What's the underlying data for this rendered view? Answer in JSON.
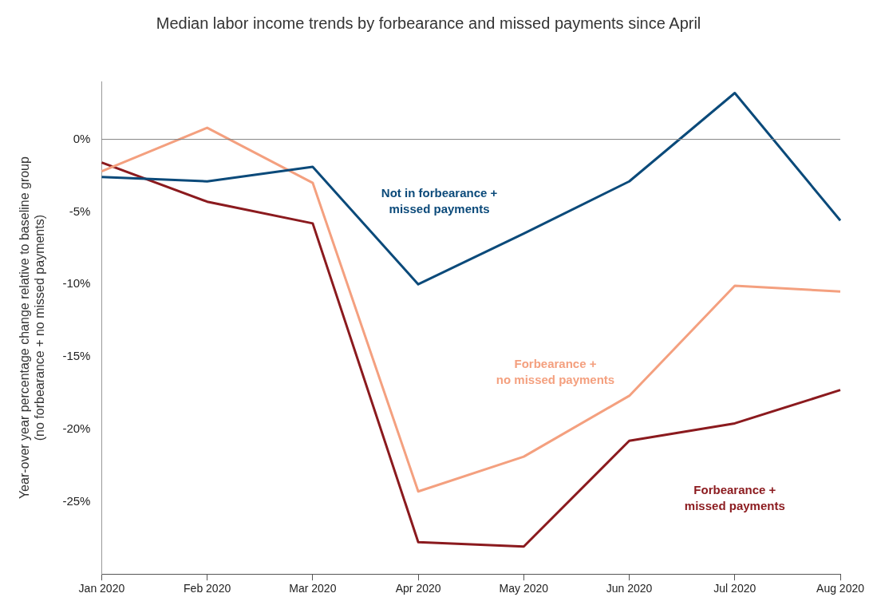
{
  "chart_data": {
    "type": "line",
    "title": "Median labor income trends by forbearance and missed payments since April",
    "ylabel": "Year-over year percentage change relative to baseline group\n(no forbearance + no missed payments)",
    "categories": [
      "Jan 2020",
      "Feb 2020",
      "Mar 2020",
      "Apr 2020",
      "May 2020",
      "Jun 2020",
      "Jul 2020",
      "Aug 2020"
    ],
    "series": [
      {
        "name": "Not in forbearance +\nmissed payments",
        "color": "#0b4a7a",
        "values": [
          -2.6,
          -2.9,
          -1.9,
          -10.0,
          -6.5,
          -2.9,
          3.2,
          -5.6
        ]
      },
      {
        "name": "Forbearance +\nno missed payments",
        "color": "#f4a07f",
        "values": [
          -2.2,
          0.8,
          -3.0,
          -24.3,
          -21.9,
          -17.7,
          -10.1,
          -10.5
        ]
      },
      {
        "name": "Forbearance +\nmissed payments",
        "color": "#8b1a1e",
        "values": [
          -1.6,
          -4.3,
          -5.8,
          -27.8,
          -28.1,
          -20.8,
          -19.6,
          -17.3
        ]
      }
    ],
    "yticks": [
      {
        "value": 0,
        "label": "0%"
      },
      {
        "value": -5,
        "label": "-5%"
      },
      {
        "value": -10,
        "label": "-10%"
      },
      {
        "value": -15,
        "label": "-15%"
      },
      {
        "value": -20,
        "label": "-20%"
      },
      {
        "value": -25,
        "label": "-25%"
      }
    ],
    "ylim": [
      -30,
      4
    ],
    "ref_lines": [
      {
        "axis": "y",
        "value": 0,
        "color": "#808080"
      }
    ],
    "grid": false,
    "legend": false,
    "marker": "none",
    "line_style": "solid"
  }
}
